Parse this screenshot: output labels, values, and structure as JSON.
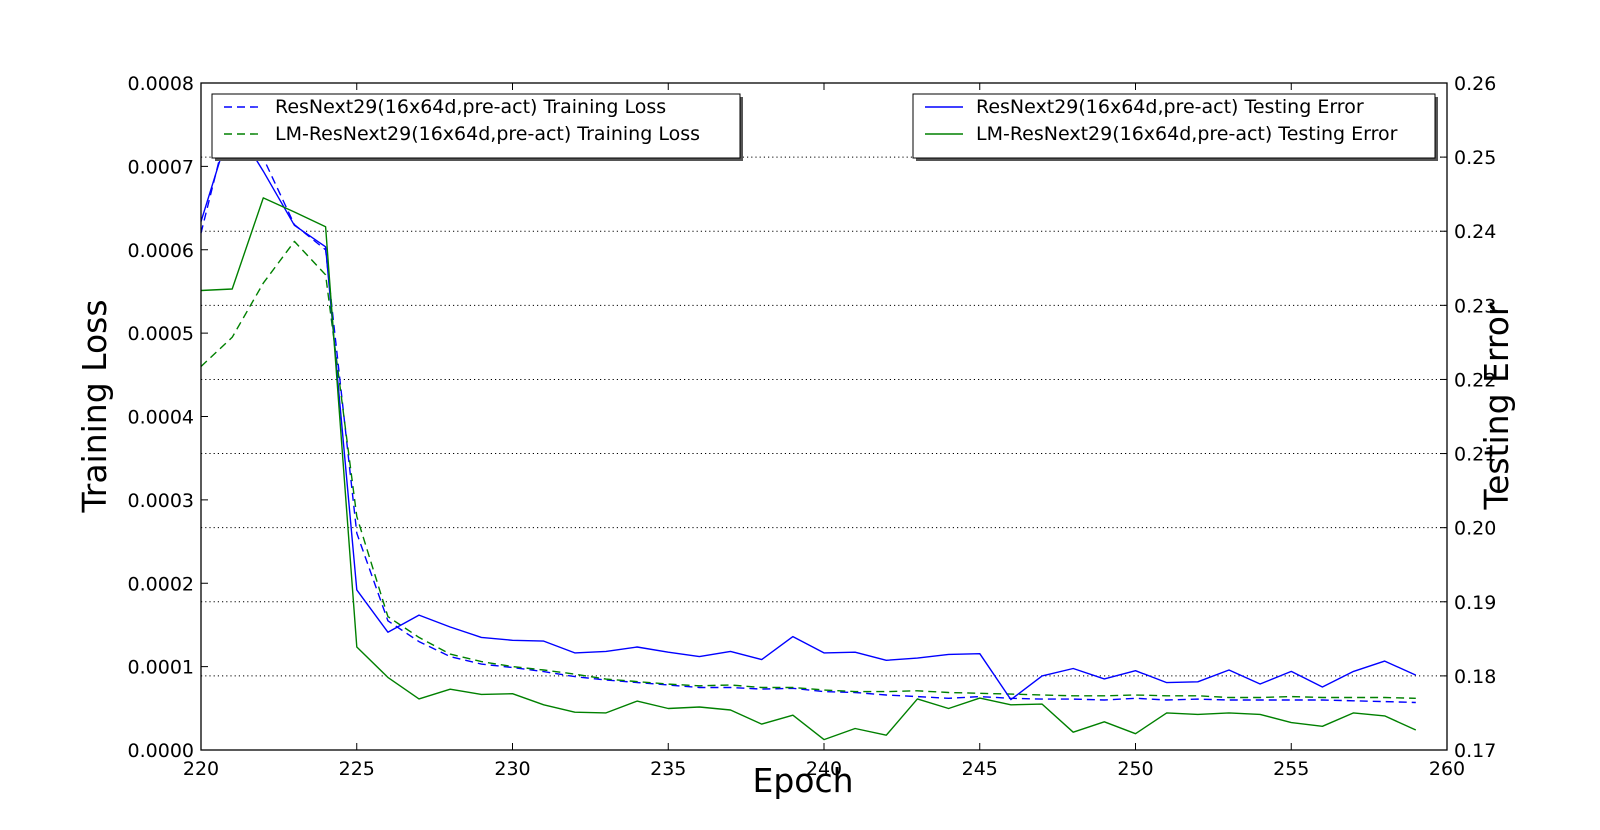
{
  "chart_data": {
    "type": "line",
    "title": "",
    "xlabel": "Epoch",
    "ylabel": "Training Loss",
    "y2label": "Testing Error",
    "xlim": [
      220,
      260
    ],
    "ylim": [
      0,
      0.0008
    ],
    "y2lim": [
      0.17,
      0.26
    ],
    "x_ticks": [
      220,
      225,
      230,
      235,
      240,
      245,
      250,
      255,
      260
    ],
    "x_tick_labels": [
      "220",
      "225",
      "230",
      "235",
      "240",
      "245",
      "250",
      "255",
      "260"
    ],
    "y_ticks": [
      0,
      0.0001,
      0.0002,
      0.0003,
      0.0004,
      0.0005,
      0.0006,
      0.0007,
      0.0008
    ],
    "y_tick_labels": [
      "0.0000",
      "0.0001",
      "0.0002",
      "0.0003",
      "0.0004",
      "0.0005",
      "0.0006",
      "0.0007",
      "0.0008"
    ],
    "y2_ticks": [
      0.17,
      0.18,
      0.19,
      0.2,
      0.21,
      0.22,
      0.23,
      0.24,
      0.25,
      0.26
    ],
    "y2_tick_labels": [
      "0.17",
      "0.18",
      "0.19",
      "0.20",
      "0.21",
      "0.22",
      "0.23",
      "0.24",
      "0.25",
      "0.26"
    ],
    "grid": "horizontal dotted lines at right-axis ticks",
    "colors": {
      "blue": "#0000ff",
      "green": "#008000"
    },
    "x": [
      220,
      221,
      222,
      223,
      224,
      225,
      226,
      227,
      228,
      229,
      230,
      231,
      232,
      233,
      234,
      235,
      236,
      237,
      238,
      239,
      240,
      241,
      242,
      243,
      244,
      245,
      246,
      247,
      248,
      249,
      250,
      251,
      252,
      253,
      254,
      255,
      256,
      257,
      258,
      259
    ],
    "series": [
      {
        "name": "ResNext29(16x64d,pre-act) Training Loss",
        "axis": "left",
        "style": "dashed",
        "color": "#0000ff",
        "legend": "top-left",
        "values": [
          0.00062,
          0.00077,
          0.00071,
          0.00063,
          0.0006,
          0.00026,
          0.000155,
          0.00013,
          0.000112,
          0.000103,
          9.9e-05,
          9.4e-05,
          8.8e-05,
          8.4e-05,
          8.1e-05,
          7.8e-05,
          7.5e-05,
          7.5e-05,
          7.3e-05,
          7.4e-05,
          7e-05,
          6.9e-05,
          6.6e-05,
          6.4e-05,
          6.2e-05,
          6.4e-05,
          6.2e-05,
          6.1e-05,
          6.1e-05,
          6e-05,
          6.2e-05,
          6e-05,
          6.1e-05,
          6e-05,
          6e-05,
          6e-05,
          6e-05,
          5.9e-05,
          5.8e-05,
          5.7e-05
        ]
      },
      {
        "name": "LM-ResNext29(16x64d,pre-act) Training Loss",
        "axis": "left",
        "style": "dashed",
        "color": "#008000",
        "legend": "top-left",
        "values": [
          0.00046,
          0.000495,
          0.00056,
          0.00061,
          0.00057,
          0.00028,
          0.00016,
          0.000135,
          0.000115,
          0.000106,
          0.0001,
          9.6e-05,
          9.1e-05,
          8.5e-05,
          8.2e-05,
          7.9e-05,
          7.7e-05,
          7.8e-05,
          7.5e-05,
          7.5e-05,
          7.2e-05,
          7e-05,
          7e-05,
          7.1e-05,
          6.9e-05,
          6.8e-05,
          6.7e-05,
          6.6e-05,
          6.5e-05,
          6.5e-05,
          6.6e-05,
          6.5e-05,
          6.5e-05,
          6.3e-05,
          6.3e-05,
          6.4e-05,
          6.3e-05,
          6.3e-05,
          6.3e-05,
          6.2e-05
        ]
      },
      {
        "name": "ResNext29(16x64d,pre-act) Testing Error",
        "axis": "right",
        "style": "solid",
        "color": "#0000ff",
        "legend": "top-right",
        "values": [
          0.2413,
          0.2549,
          0.2481,
          0.2408,
          0.2379,
          0.1916,
          0.1859,
          0.1882,
          0.1866,
          0.1852,
          0.1848,
          0.1847,
          0.1831,
          0.1833,
          0.1839,
          0.1832,
          0.1826,
          0.1833,
          0.1822,
          0.1853,
          0.1831,
          0.1832,
          0.1821,
          0.1824,
          0.1829,
          0.183,
          0.1768,
          0.18,
          0.181,
          0.1796,
          0.1807,
          0.1791,
          0.1792,
          0.1808,
          0.1789,
          0.1806,
          0.1785,
          0.1806,
          0.182,
          0.1801
        ]
      },
      {
        "name": "LM-ResNext29(16x64d,pre-act) Testing Error",
        "axis": "right",
        "style": "solid",
        "color": "#008000",
        "legend": "top-right",
        "values": [
          0.232,
          0.2322,
          0.2445,
          0.2426,
          0.2406,
          0.1839,
          0.1798,
          0.1769,
          0.1782,
          0.1775,
          0.1776,
          0.1761,
          0.1751,
          0.175,
          0.1766,
          0.1756,
          0.1758,
          0.1754,
          0.1735,
          0.1747,
          0.1714,
          0.1729,
          0.172,
          0.1769,
          0.1756,
          0.177,
          0.1761,
          0.1762,
          0.1724,
          0.1738,
          0.1722,
          0.175,
          0.1748,
          0.175,
          0.1748,
          0.1737,
          0.1732,
          0.175,
          0.1746,
          0.1727
        ]
      }
    ]
  }
}
